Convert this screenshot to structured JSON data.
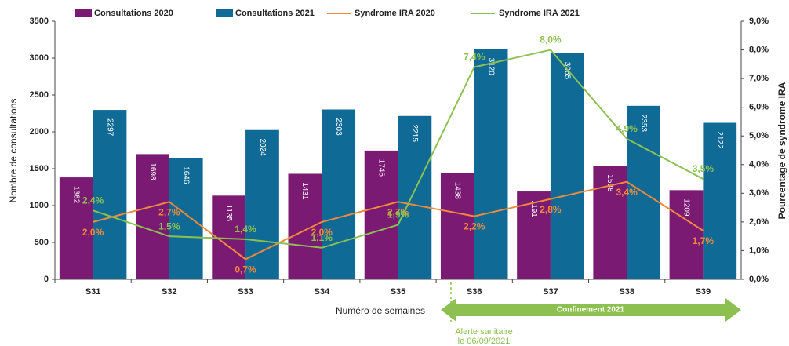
{
  "chart_data": {
    "type": "bar",
    "categories": [
      "S31",
      "S32",
      "S33",
      "S34",
      "S35",
      "S36",
      "S37",
      "S38",
      "S39"
    ],
    "series": [
      {
        "name": "Consultations 2020",
        "type": "bar",
        "color": "#7b1a73",
        "values": [
          1382,
          1698,
          1135,
          1431,
          1746,
          1438,
          1191,
          1538,
          1209
        ]
      },
      {
        "name": "Consultations 2021",
        "type": "bar",
        "color": "#0f6a96",
        "values": [
          2297,
          1646,
          2024,
          2303,
          2215,
          3120,
          3065,
          2353,
          2122
        ]
      },
      {
        "name": "Syndrome IRA 2020",
        "type": "line",
        "axis": "y2",
        "color": "#f08a3a",
        "values": [
          2.0,
          2.7,
          0.7,
          2.0,
          2.7,
          2.2,
          2.8,
          3.4,
          1.7
        ],
        "value_labels": [
          "2,0%",
          "2,7%",
          "0,7%",
          "2,0%",
          "2,7%",
          "2,2%",
          "2,8%",
          "3,4%",
          "1,7%"
        ]
      },
      {
        "name": "Syndrome IRA 2021",
        "type": "line",
        "axis": "y2",
        "color": "#8cc152",
        "values": [
          2.4,
          1.5,
          1.4,
          1.1,
          1.9,
          7.4,
          8.0,
          4.9,
          3.5
        ],
        "value_labels": [
          "2,4%",
          "1,5%",
          "1,4%",
          "1,1%",
          "1,9%",
          "7,4%",
          "8,0%",
          "4,9%",
          "3,5%"
        ]
      }
    ],
    "x_label": "Numéro de semaines",
    "y_label": "Nombre de consultations",
    "y2_label": "Pourcentage de syndrome IRA",
    "ylim": [
      0,
      3500
    ],
    "yticks": [
      0,
      500,
      1000,
      1500,
      2000,
      2500,
      3000,
      3500
    ],
    "y2lim": [
      0,
      9
    ],
    "y2ticks": [
      {
        "value": 0,
        "label": "0,0%"
      },
      {
        "value": 1,
        "label": "1,0%"
      },
      {
        "value": 2,
        "label": "2,0%"
      },
      {
        "value": 3,
        "label": "3,0%"
      },
      {
        "value": 4,
        "label": "4,0%"
      },
      {
        "value": 5,
        "label": "5,0%"
      },
      {
        "value": 6,
        "label": "6,0%"
      },
      {
        "value": 7,
        "label": "7,0%"
      },
      {
        "value": 8,
        "label": "8,0%"
      },
      {
        "value": 9,
        "label": "9,0%"
      }
    ],
    "annotations": [
      "Confinement 2021",
      "Alerte sanitaire",
      "le 06/09/2021"
    ]
  }
}
